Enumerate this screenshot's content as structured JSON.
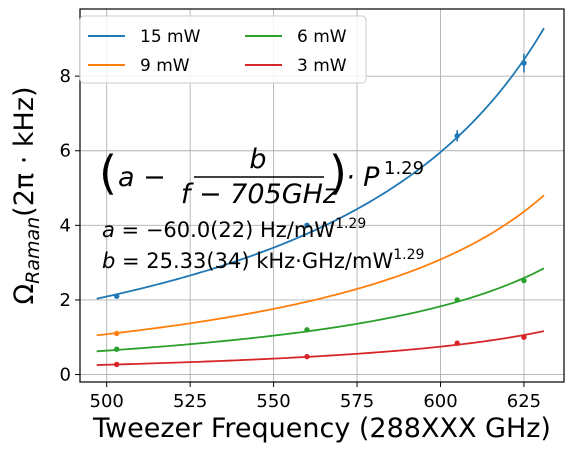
{
  "chart_data": {
    "type": "scatter",
    "xlabel": "Tweezer Frequency (288XXX GHz)",
    "ylabel": "Ω_Raman(2π · kHz)",
    "xlim": [
      492,
      637
    ],
    "ylim": [
      -0.2,
      9.8
    ],
    "x_ticks": [
      500,
      525,
      550,
      575,
      600,
      625
    ],
    "y_ticks": [
      0,
      2,
      4,
      6,
      8
    ],
    "grid": true,
    "legend_position": "top-left",
    "annotations": {
      "formula": {
        "a_term": "a −",
        "numerator": "b",
        "denominator": "f − 705GHz",
        "power_term": "· P",
        "exponent": "1.29"
      },
      "a_line": {
        "var": "a",
        "value": " = −60.0(22) Hz/mW",
        "exponent": "1.29"
      },
      "b_line": {
        "var": "b",
        "value": " = 25.33(34) kHz·GHz/mW",
        "exponent": "1.29"
      }
    },
    "model": {
      "offset": 705,
      "exponent": 1.29,
      "a": -0.06,
      "b": 25.33
    },
    "series": [
      {
        "name": "15 mW",
        "power": 15,
        "color": "#1f77b4",
        "fit_x": [
          497,
          631
        ],
        "points": [
          {
            "x": 503,
            "y": 2.1,
            "err": 0.05
          },
          {
            "x": 560,
            "y": 4.0,
            "err": 0.06
          },
          {
            "x": 605,
            "y": 6.4,
            "err": 0.15
          },
          {
            "x": 625,
            "y": 8.35,
            "err": 0.25
          }
        ]
      },
      {
        "name": "9 mW",
        "power": 9,
        "color": "#ff7f0e",
        "fit_x": [
          497,
          631
        ],
        "points": [
          {
            "x": 503,
            "y": 1.1,
            "err": 0.03
          }
        ]
      },
      {
        "name": "6 mW",
        "power": 6,
        "color": "#2ca02c",
        "fit_x": [
          497,
          631
        ],
        "points": [
          {
            "x": 503,
            "y": 0.68,
            "err": 0.03
          },
          {
            "x": 560,
            "y": 1.2,
            "err": 0.03
          },
          {
            "x": 605,
            "y": 2.0,
            "err": 0.04
          },
          {
            "x": 625,
            "y": 2.52,
            "err": 0.05
          }
        ]
      },
      {
        "name": "3 mW",
        "power": 3,
        "color": "#d62728",
        "fit_x": [
          497,
          631
        ],
        "points": [
          {
            "x": 503,
            "y": 0.27,
            "err": 0.02
          },
          {
            "x": 560,
            "y": 0.48,
            "err": 0.02
          },
          {
            "x": 605,
            "y": 0.84,
            "err": 0.03
          },
          {
            "x": 625,
            "y": 1.0,
            "err": 0.04
          }
        ]
      }
    ]
  }
}
